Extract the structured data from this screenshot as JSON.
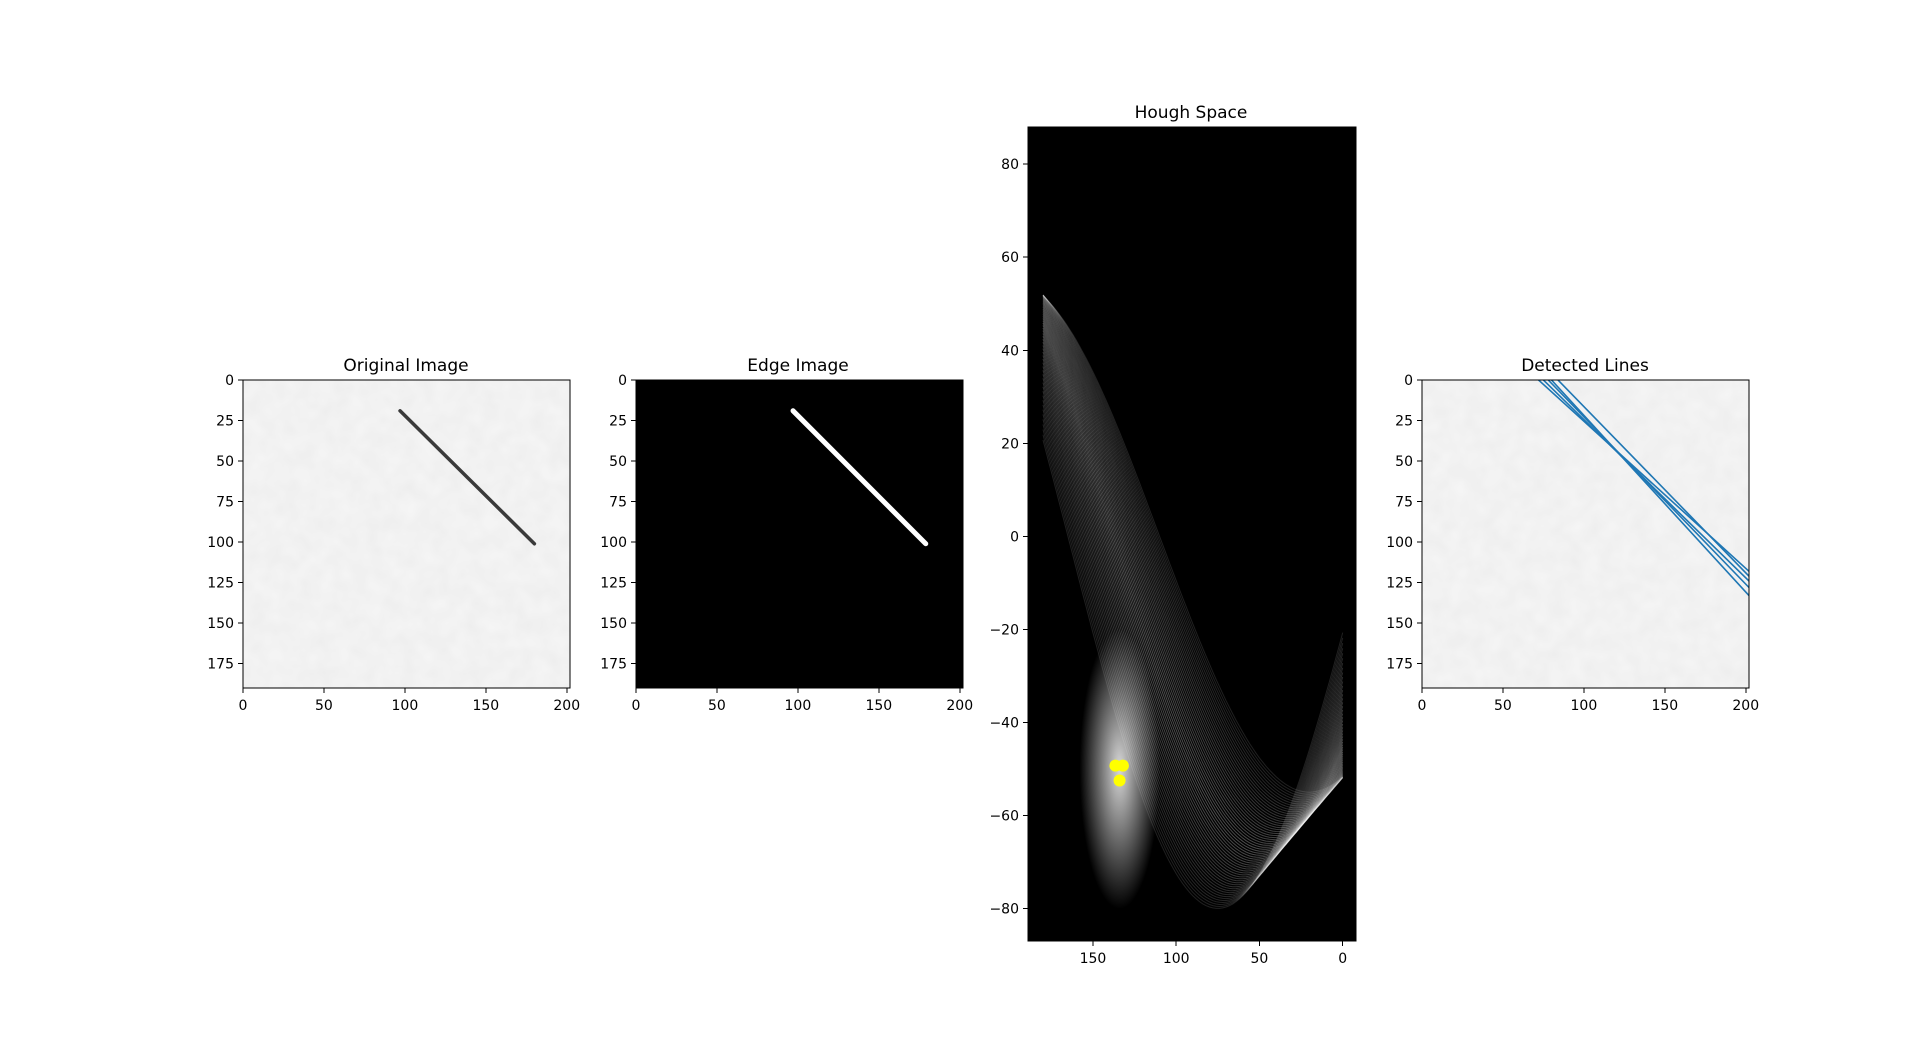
{
  "chart_data": [
    {
      "type": "image",
      "title": "Original Image",
      "xticks": [
        0,
        50,
        100,
        150,
        200
      ],
      "yticks": [
        0,
        25,
        50,
        75,
        100,
        125,
        150,
        175
      ],
      "xlim": [
        0,
        202
      ],
      "ylim": [
        190,
        0
      ],
      "background": "#f6f6f6",
      "line": {
        "x": [
          97,
          180
        ],
        "y": [
          19,
          101
        ],
        "color": "#3a3a3a"
      }
    },
    {
      "type": "image",
      "title": "Edge Image",
      "xticks": [
        0,
        50,
        100,
        150,
        200
      ],
      "yticks": [
        0,
        25,
        50,
        75,
        100,
        125,
        150,
        175
      ],
      "xlim": [
        0,
        202
      ],
      "ylim": [
        190,
        0
      ],
      "background": "#000000",
      "line": {
        "x": [
          97,
          179
        ],
        "y": [
          19,
          101
        ],
        "color": "#ffffff"
      }
    },
    {
      "type": "heatmap",
      "title": "Hough Space",
      "xticks": [
        150,
        100,
        50,
        0
      ],
      "yticks": [
        -80,
        -60,
        -40,
        -20,
        0,
        20,
        40,
        60,
        80
      ],
      "xlim": [
        189,
        -8
      ],
      "ylim": [
        -87,
        88
      ],
      "background": "#000000",
      "peaks": [
        {
          "theta": 134,
          "rho": -52.5
        },
        {
          "theta": 136.5,
          "rho": -49.3
        },
        {
          "theta": 132,
          "rho": -49.3
        }
      ],
      "peak_color": "#ffff00"
    },
    {
      "type": "image",
      "title": "Detected Lines",
      "xticks": [
        0,
        50,
        100,
        150,
        200
      ],
      "yticks": [
        0,
        25,
        50,
        75,
        100,
        125,
        150,
        175
      ],
      "xlim": [
        0,
        202
      ],
      "ylim": [
        190,
        0
      ],
      "background": "#f6f6f6",
      "line_color": "#1f77b4",
      "lines": [
        {
          "x": [
            72,
            202
          ],
          "y": [
            0,
            118
          ]
        },
        {
          "x": [
            75,
            202
          ],
          "y": [
            0,
            124
          ]
        },
        {
          "x": [
            78,
            202
          ],
          "y": [
            0,
            128
          ]
        },
        {
          "x": [
            80,
            202
          ],
          "y": [
            0,
            133
          ]
        },
        {
          "x": [
            84,
            202
          ],
          "y": [
            0,
            121
          ]
        }
      ]
    }
  ]
}
